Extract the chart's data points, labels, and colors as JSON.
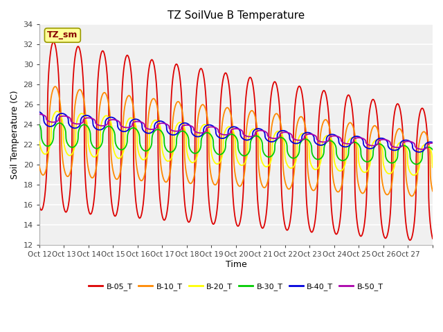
{
  "title": "TZ SoilVue B Temperature",
  "xlabel": "Time",
  "ylabel": "Soil Temperature (C)",
  "ylim": [
    12,
    34
  ],
  "xlim": [
    0,
    16
  ],
  "legend_labels": [
    "B-05_T",
    "B-10_T",
    "B-20_T",
    "B-30_T",
    "B-40_T",
    "B-50_T"
  ],
  "line_colors": [
    "#dd0000",
    "#ff8800",
    "#ffff00",
    "#00cc00",
    "#0000dd",
    "#aa00aa"
  ],
  "annotation_text": "TZ_sm",
  "annotation_color": "#880000",
  "annotation_bg": "#ffff99",
  "annotation_edge": "#999900",
  "fig_bg": "#ffffff",
  "plot_bg": "#f0f0f0",
  "grid_color": "#ffffff",
  "title_fontsize": 11,
  "axis_label_fontsize": 9,
  "tick_fontsize": 8,
  "legend_fontsize": 8
}
